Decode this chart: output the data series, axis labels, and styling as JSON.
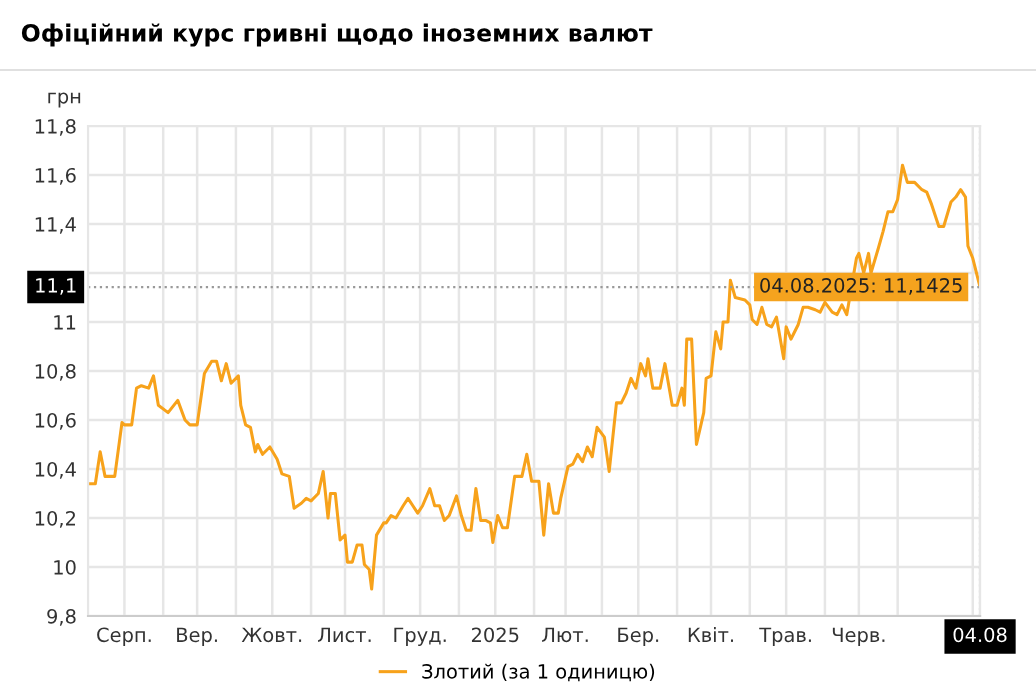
{
  "chart_data": {
    "type": "line",
    "title": "Офіційний курс гривні щодо іноземних валют",
    "ylabel": "грн",
    "x": [
      "2024-08-01",
      "2024-08-04",
      "2024-08-06",
      "2024-08-08",
      "2024-08-12",
      "2024-08-15",
      "2024-08-16",
      "2024-08-19",
      "2024-08-21",
      "2024-08-23",
      "2024-08-26",
      "2024-08-28",
      "2024-08-30",
      "2024-09-03",
      "2024-09-07",
      "2024-09-10",
      "2024-09-12",
      "2024-09-15",
      "2024-09-18",
      "2024-09-21",
      "2024-09-23",
      "2024-09-25",
      "2024-09-27",
      "2024-09-29",
      "2024-10-02",
      "2024-10-03",
      "2024-10-05",
      "2024-10-07",
      "2024-10-09",
      "2024-10-10",
      "2024-10-12",
      "2024-10-15",
      "2024-10-18",
      "2024-10-20",
      "2024-10-23",
      "2024-10-25",
      "2024-10-28",
      "2024-10-30",
      "2024-11-01",
      "2024-11-04",
      "2024-11-06",
      "2024-11-08",
      "2024-11-09",
      "2024-11-11",
      "2024-11-13",
      "2024-11-15",
      "2024-11-16",
      "2024-11-18",
      "2024-11-20",
      "2024-11-22",
      "2024-11-23",
      "2024-11-25",
      "2024-11-26",
      "2024-11-28",
      "2024-12-01",
      "2024-12-02",
      "2024-12-04",
      "2024-12-06",
      "2024-12-09",
      "2024-12-11",
      "2024-12-13",
      "2024-12-15",
      "2024-12-17",
      "2024-12-20",
      "2024-12-22",
      "2024-12-24",
      "2024-12-26",
      "2024-12-28",
      "2024-12-31",
      "2025-01-02",
      "2025-01-04",
      "2025-01-06",
      "2025-01-08",
      "2025-01-10",
      "2025-01-12",
      "2025-01-14",
      "2025-01-15",
      "2025-01-17",
      "2025-01-19",
      "2025-01-21",
      "2025-01-24",
      "2025-01-27",
      "2025-01-29",
      "2025-01-31",
      "2025-02-03",
      "2025-02-05",
      "2025-02-07",
      "2025-02-09",
      "2025-02-11",
      "2025-02-12",
      "2025-02-15",
      "2025-02-17",
      "2025-02-19",
      "2025-02-21",
      "2025-02-23",
      "2025-02-25",
      "2025-02-27",
      "2025-03-02",
      "2025-03-04",
      "2025-03-07",
      "2025-03-09",
      "2025-03-11",
      "2025-03-13",
      "2025-03-15",
      "2025-03-17",
      "2025-03-19",
      "2025-03-20",
      "2025-03-22",
      "2025-03-25",
      "2025-03-27",
      "2025-03-30",
      "2025-04-01",
      "2025-04-03",
      "2025-04-04",
      "2025-04-05",
      "2025-04-07",
      "2025-04-09",
      "2025-04-12",
      "2025-04-13",
      "2025-04-15",
      "2025-04-17",
      "2025-04-19",
      "2025-04-20",
      "2025-04-22",
      "2025-04-23",
      "2025-04-25",
      "2025-04-29",
      "2025-05-01",
      "2025-05-02",
      "2025-05-04",
      "2025-05-06",
      "2025-05-08",
      "2025-05-10",
      "2025-05-12",
      "2025-05-15",
      "2025-05-16",
      "2025-05-18",
      "2025-05-19",
      "2025-05-21",
      "2025-05-23",
      "2025-05-25",
      "2025-05-28",
      "2025-05-30",
      "2025-06-01",
      "2025-06-04",
      "2025-06-06",
      "2025-06-08",
      "2025-06-10",
      "2025-06-14",
      "2025-06-15",
      "2025-06-17",
      "2025-06-19",
      "2025-06-20",
      "2025-06-23",
      "2025-06-25",
      "2025-06-27",
      "2025-06-29",
      "2025-07-01",
      "2025-07-03",
      "2025-07-05",
      "2025-07-08",
      "2025-07-11",
      "2025-07-13",
      "2025-07-15",
      "2025-07-18",
      "2025-07-20",
      "2025-07-23",
      "2025-07-25",
      "2025-07-27",
      "2025-07-29",
      "2025-07-30",
      "2025-08-01",
      "2025-08-04"
    ],
    "series": [
      {
        "name": "Злотий (за 1 одиницю)",
        "color": "#f7a21b",
        "values": [
          10.34,
          10.34,
          10.47,
          10.37,
          10.37,
          10.59,
          10.58,
          10.58,
          10.73,
          10.74,
          10.73,
          10.78,
          10.66,
          10.63,
          10.68,
          10.6,
          10.58,
          10.58,
          10.79,
          10.84,
          10.84,
          10.76,
          10.83,
          10.75,
          10.78,
          10.66,
          10.58,
          10.57,
          10.47,
          10.5,
          10.46,
          10.49,
          10.44,
          10.38,
          10.37,
          10.24,
          10.26,
          10.28,
          10.27,
          10.3,
          10.39,
          10.2,
          10.3,
          10.3,
          10.11,
          10.13,
          10.02,
          10.02,
          10.09,
          10.09,
          10.01,
          9.99,
          9.91,
          10.13,
          10.18,
          10.18,
          10.21,
          10.2,
          10.25,
          10.28,
          10.25,
          10.22,
          10.25,
          10.32,
          10.25,
          10.25,
          10.19,
          10.21,
          10.29,
          10.21,
          10.15,
          10.15,
          10.32,
          10.19,
          10.19,
          10.18,
          10.1,
          10.21,
          10.16,
          10.16,
          10.37,
          10.37,
          10.46,
          10.35,
          10.35,
          10.13,
          10.34,
          10.22,
          10.22,
          10.28,
          10.41,
          10.42,
          10.46,
          10.43,
          10.49,
          10.45,
          10.57,
          10.53,
          10.39,
          10.67,
          10.67,
          10.71,
          10.77,
          10.73,
          10.83,
          10.78,
          10.85,
          10.73,
          10.73,
          10.83,
          10.66,
          10.66,
          10.73,
          10.66,
          10.93,
          10.93,
          10.5,
          10.63,
          10.77,
          10.78,
          10.96,
          10.89,
          11.0,
          11.0,
          11.17,
          11.1,
          11.09,
          11.07,
          11.01,
          10.99,
          11.06,
          10.99,
          10.98,
          11.02,
          10.85,
          10.98,
          10.93,
          10.95,
          10.99,
          11.06,
          11.06,
          11.05,
          11.04,
          11.08,
          11.04,
          11.03,
          11.07,
          11.03,
          11.26,
          11.28,
          11.2,
          11.28,
          11.2,
          11.3,
          11.37,
          11.45,
          11.45,
          11.5,
          11.64,
          11.57,
          11.57,
          11.54,
          11.53,
          11.48,
          11.39,
          11.39,
          11.49,
          11.51,
          11.54,
          11.51,
          11.31,
          11.26,
          11.1425
        ]
      }
    ],
    "xlim": [
      "2024-08-01",
      "2025-08-04"
    ],
    "xticks": [
      {
        "value": "2024-09-01",
        "label": null
      },
      {
        "value": "2024-10-01",
        "label": null
      },
      {
        "value": "2024-11-01",
        "label": null
      },
      {
        "value": "2024-12-01",
        "label": null
      },
      {
        "value": "2025-01-01",
        "label": null
      },
      {
        "value": "2025-02-01",
        "label": null
      },
      {
        "value": "2025-03-01",
        "label": null
      },
      {
        "value": "2025-04-01",
        "label": null
      },
      {
        "value": "2025-05-01",
        "label": null
      },
      {
        "value": "2025-06-01",
        "label": null
      },
      {
        "value": "2025-07-01",
        "label": null
      },
      {
        "value": "2025-08-01",
        "label": null
      },
      {
        "value": "2024-08-16",
        "label": "Серп."
      },
      {
        "value": "2024-09-15",
        "label": "Вер."
      },
      {
        "value": "2024-10-16",
        "label": "Жовт."
      },
      {
        "value": "2024-11-15",
        "label": "Лист."
      },
      {
        "value": "2024-12-16",
        "label": "Груд."
      },
      {
        "value": "2025-01-16",
        "label": "2025"
      },
      {
        "value": "2025-02-14",
        "label": "Лют."
      },
      {
        "value": "2025-03-16",
        "label": "Бер."
      },
      {
        "value": "2025-04-15",
        "label": "Квіт."
      },
      {
        "value": "2025-05-16",
        "label": "Трав."
      },
      {
        "value": "2025-06-15",
        "label": "Черв."
      },
      {
        "value": "2025-08-04",
        "label": "04.08"
      }
    ],
    "ylim": [
      9.8,
      11.8
    ],
    "yticks": [
      {
        "value": 9.8,
        "label": "9,8"
      },
      10,
      {
        "value": 10.2,
        "label": "10,2"
      },
      {
        "value": 10.4,
        "label": "10,4"
      },
      {
        "value": 10.6,
        "label": "10,6"
      },
      {
        "value": 10.8,
        "label": "10,8"
      },
      11,
      {
        "value": 11.2,
        "label": null
      },
      {
        "value": 11.4,
        "label": "11,4"
      },
      {
        "value": 11.6,
        "label": "11,6"
      },
      {
        "value": 11.8,
        "label": "11,8"
      }
    ],
    "ref_lines": [
      {
        "axis": "y",
        "value": 11.1425,
        "label": "11,1",
        "color": "#999999",
        "line_style": "dotted"
      },
      {
        "axis": "x",
        "value": "2025-08-04",
        "color": "#999999",
        "line_style": "dotted"
      }
    ],
    "annotations": [
      {
        "text": "04.08.2025: 11,1425",
        "x": "2025-08-04",
        "y": 11.1425
      }
    ],
    "grid": true,
    "legend": "bottom"
  }
}
